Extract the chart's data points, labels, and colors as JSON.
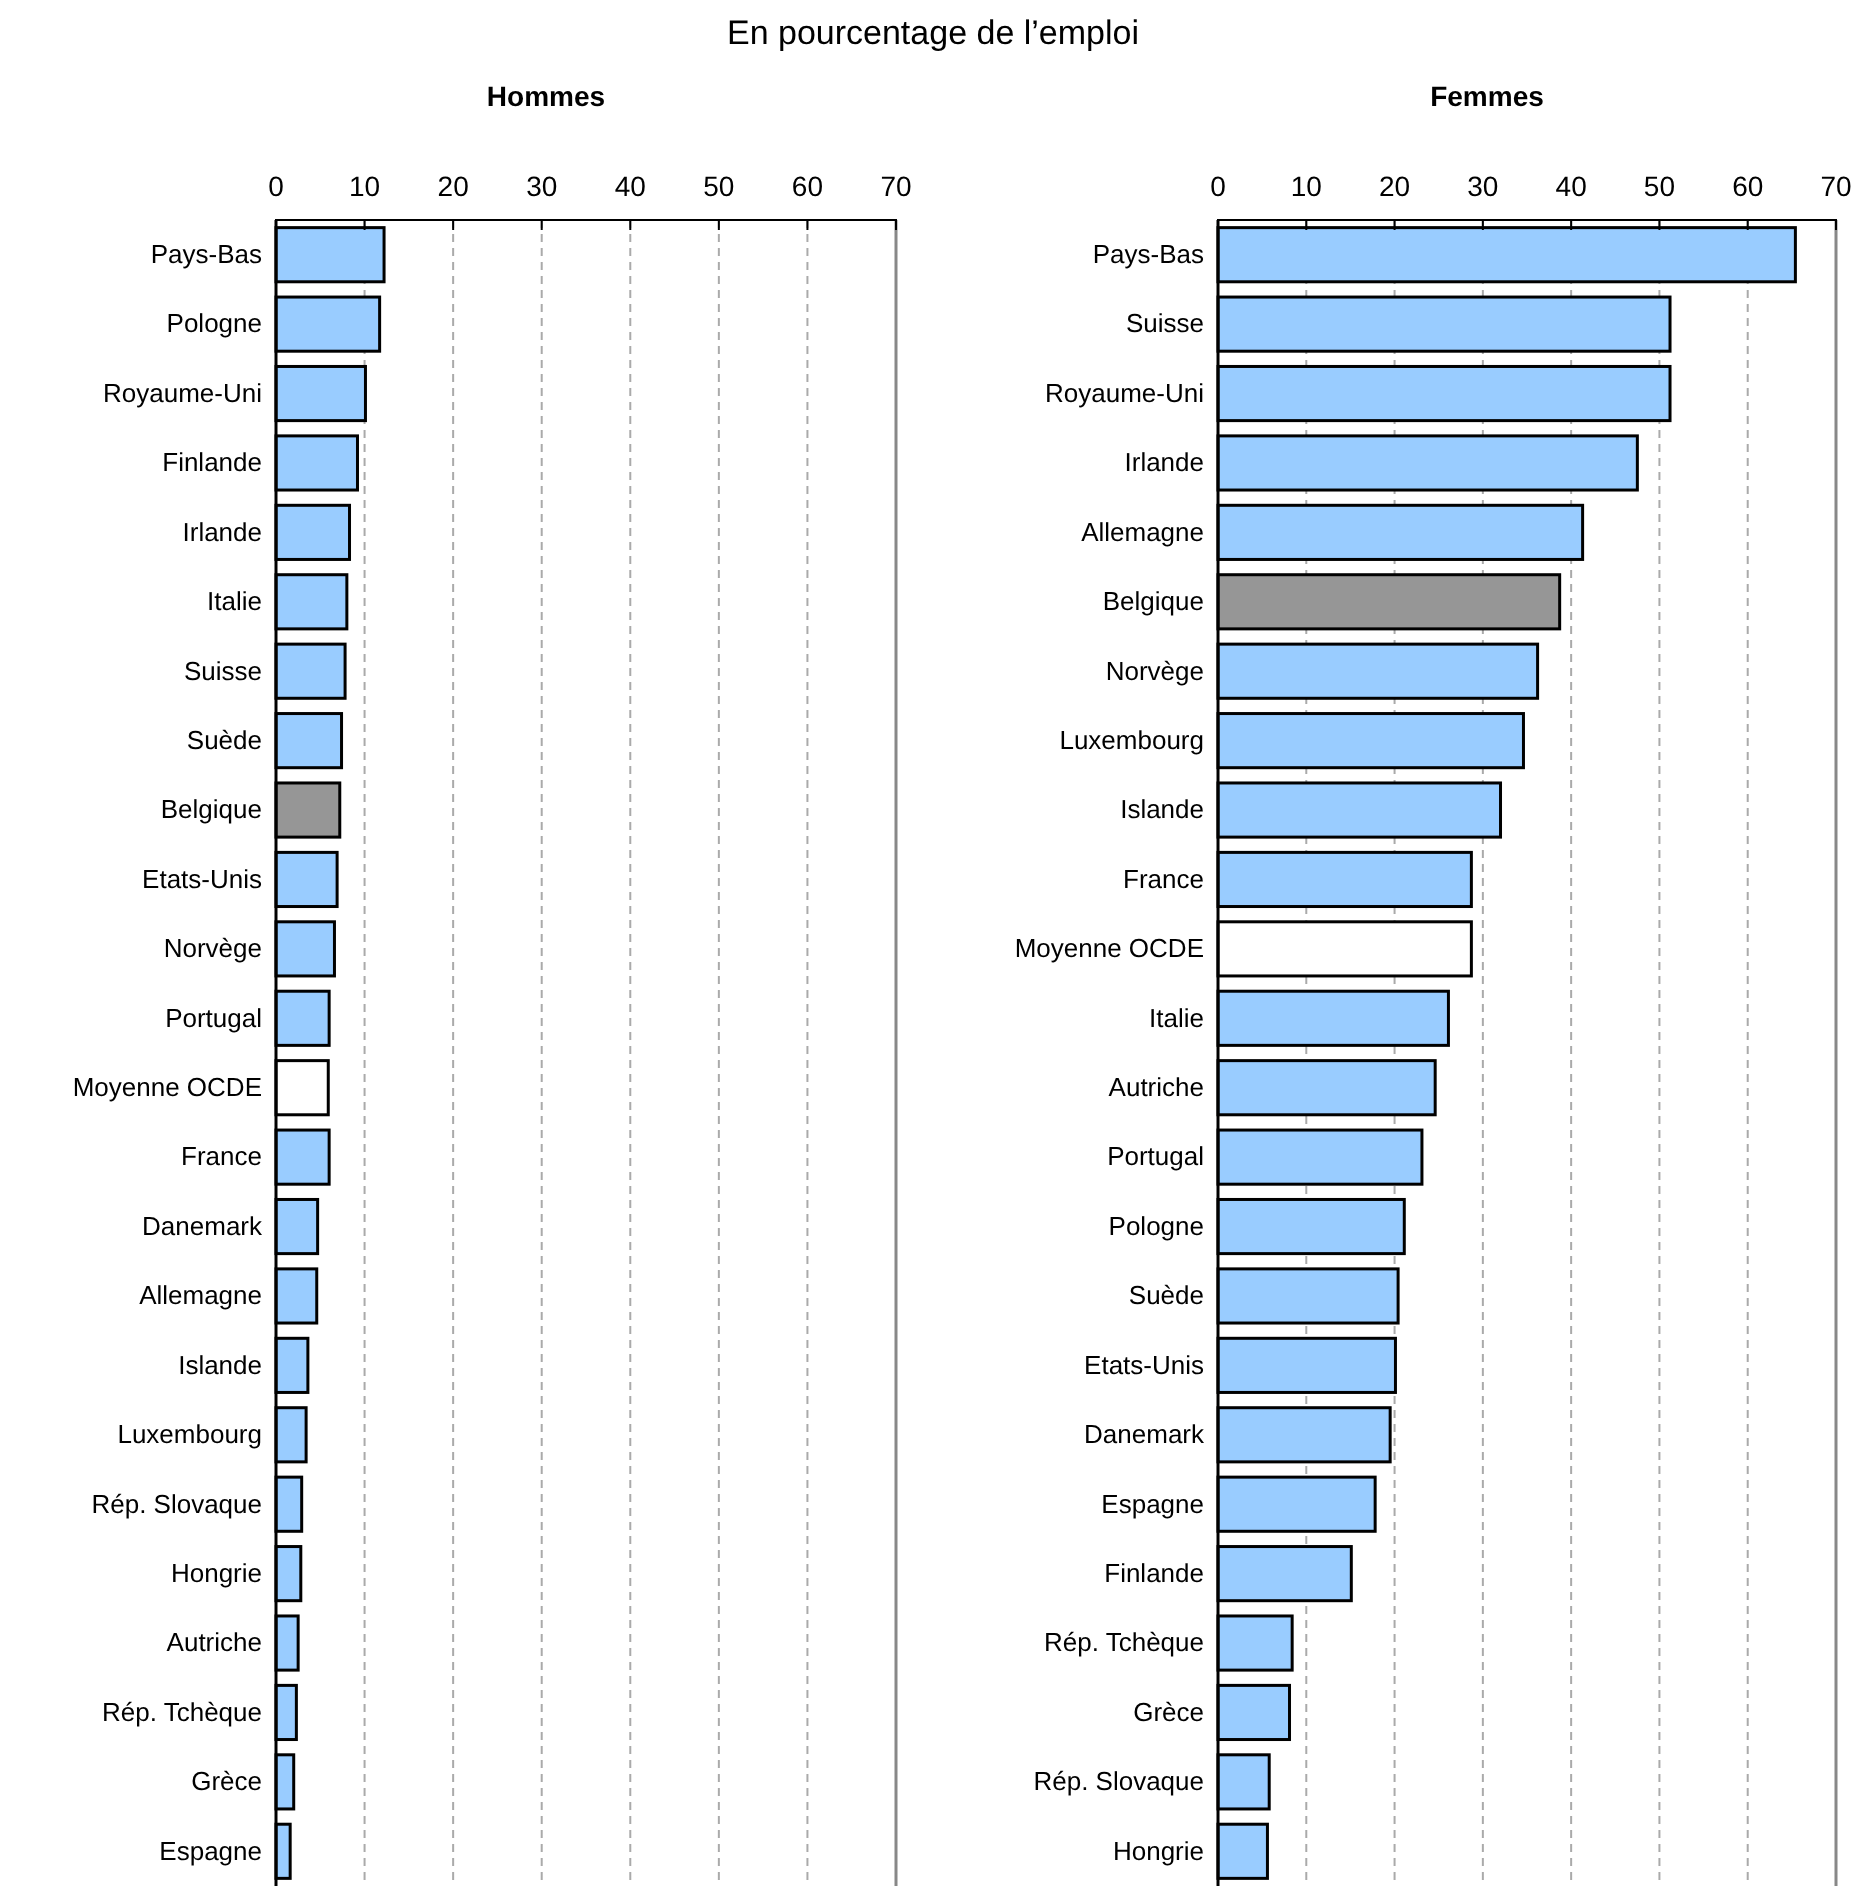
{
  "chart_data": [
    {
      "type": "bar",
      "orientation": "horizontal",
      "title": "Hommes",
      "subtitle": "En pourcentage de l’emploi",
      "categories": [
        "Pays-Bas",
        "Pologne",
        "Royaume-Uni",
        "Finlande",
        "Irlande",
        "Italie",
        "Suisse",
        "Suède",
        "Belgique",
        "Etats-Unis",
        "Norvège",
        "Portugal",
        "Moyenne OCDE",
        "France",
        "Danemark",
        "Allemagne",
        "Islande",
        "Luxembourg",
        "Rép. Slovaque",
        "Hongrie",
        "Autriche",
        "Rép. Tchèque",
        "Grèce",
        "Espagne"
      ],
      "values": [
        12.2,
        11.7,
        10.1,
        9.2,
        8.3,
        8.0,
        7.8,
        7.4,
        7.2,
        6.9,
        6.6,
        6.0,
        5.9,
        6.0,
        4.7,
        4.6,
        3.6,
        3.4,
        2.9,
        2.8,
        2.5,
        2.3,
        2.0,
        1.6
      ],
      "colors": [
        "#99ccff",
        "#99ccff",
        "#99ccff",
        "#99ccff",
        "#99ccff",
        "#99ccff",
        "#99ccff",
        "#99ccff",
        "#969696",
        "#99ccff",
        "#99ccff",
        "#99ccff",
        "#ffffff",
        "#99ccff",
        "#99ccff",
        "#99ccff",
        "#99ccff",
        "#99ccff",
        "#99ccff",
        "#99ccff",
        "#99ccff",
        "#99ccff",
        "#99ccff",
        "#99ccff"
      ],
      "xlim": [
        0,
        70
      ],
      "xticks": [
        0,
        10,
        20,
        30,
        40,
        50,
        60,
        70
      ],
      "grid": "x"
    },
    {
      "type": "bar",
      "orientation": "horizontal",
      "title": "Femmes",
      "categories": [
        "Pays-Bas",
        "Suisse",
        "Royaume-Uni",
        "Irlande",
        "Allemagne",
        "Belgique",
        "Norvège",
        "Luxembourg",
        "Islande",
        "France",
        "Moyenne OCDE",
        "Italie",
        "Autriche",
        "Portugal",
        "Pologne",
        "Suède",
        "Etats-Unis",
        "Danemark",
        "Espagne",
        "Finlande",
        "Rép. Tchèque",
        "Grèce",
        "Rép. Slovaque",
        "Hongrie"
      ],
      "values": [
        65.4,
        51.2,
        51.2,
        47.5,
        41.3,
        38.7,
        36.2,
        34.6,
        32.0,
        28.7,
        28.7,
        26.1,
        24.6,
        23.1,
        21.1,
        20.4,
        20.1,
        19.5,
        17.8,
        15.1,
        8.4,
        8.1,
        5.8,
        5.6
      ],
      "colors": [
        "#99ccff",
        "#99ccff",
        "#99ccff",
        "#99ccff",
        "#99ccff",
        "#969696",
        "#99ccff",
        "#99ccff",
        "#99ccff",
        "#99ccff",
        "#ffffff",
        "#99ccff",
        "#99ccff",
        "#99ccff",
        "#99ccff",
        "#99ccff",
        "#99ccff",
        "#99ccff",
        "#99ccff",
        "#99ccff",
        "#99ccff",
        "#99ccff",
        "#99ccff",
        "#99ccff"
      ],
      "xlim": [
        0,
        70
      ],
      "xticks": [
        0,
        10,
        20,
        30,
        40,
        50,
        60,
        70
      ],
      "grid": "x"
    }
  ]
}
